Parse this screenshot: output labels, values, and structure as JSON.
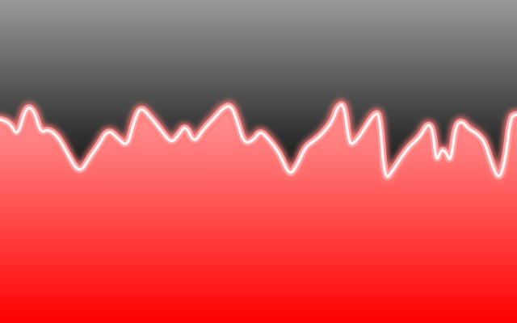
{
  "artwork": {
    "top_gradient": [
      "#9a9a9a",
      "#111111"
    ],
    "bottom_gradient": [
      "#ff9a9a",
      "#ff0000"
    ],
    "wave_core_color": "#fff2f2",
    "wave_glow_color": "#ff7a7a"
  }
}
